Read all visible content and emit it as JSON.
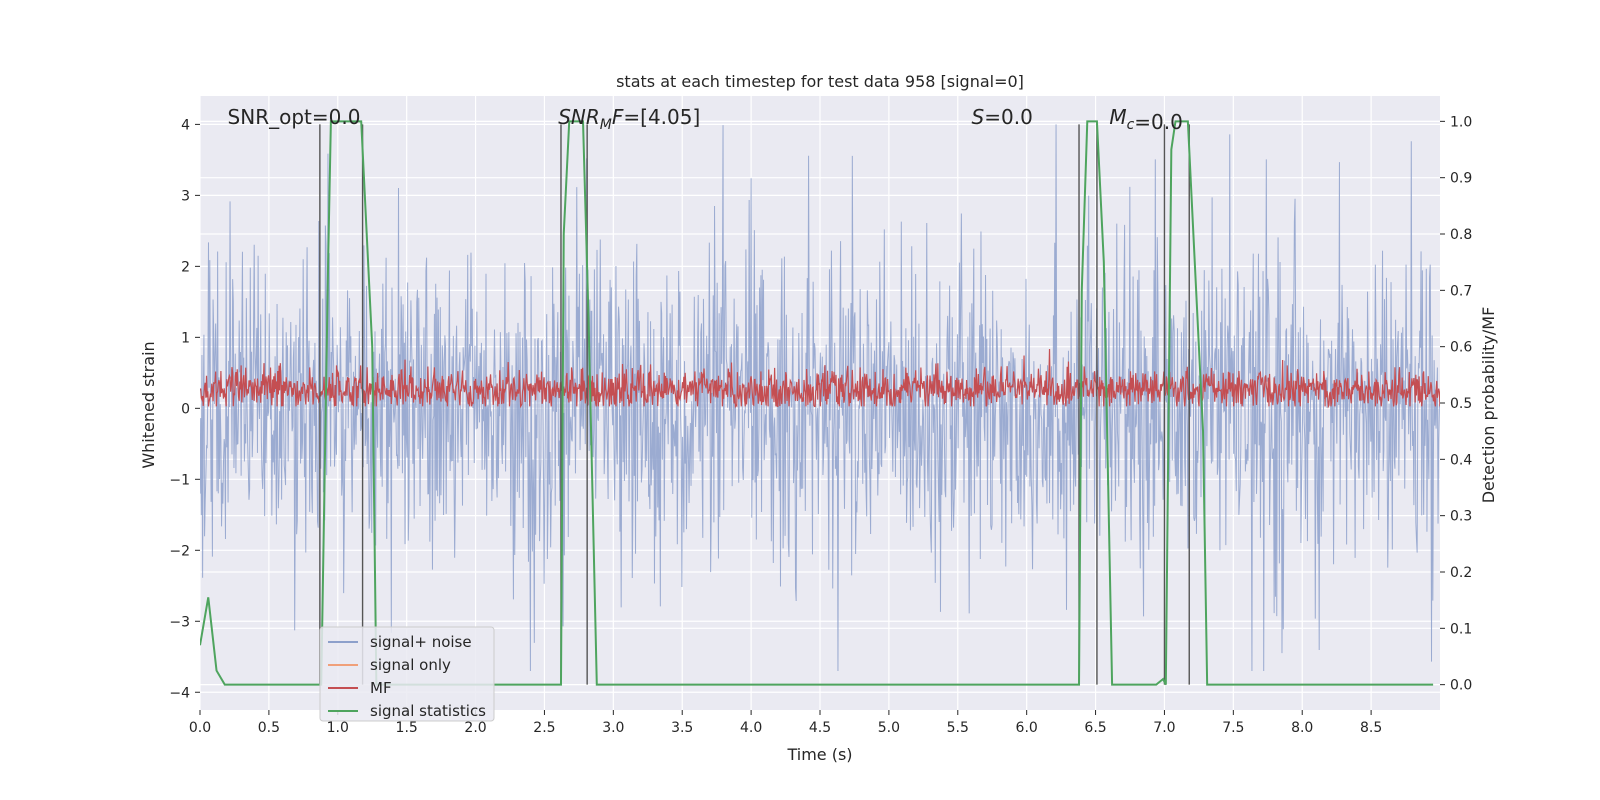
{
  "chart_data": {
    "type": "line",
    "title": "stats at each timestep for test data 958 [signal=0]",
    "xlabel": "Time (s)",
    "ylabel": "Whitened strain",
    "y2label": "Detection probability/MF",
    "xlim": [
      0.0,
      9.0
    ],
    "ylim": [
      -4.25,
      4.4
    ],
    "y2lim": [
      -0.045,
      1.045
    ],
    "x_ticks": [
      "0.0",
      "0.5",
      "1.0",
      "1.5",
      "2.0",
      "2.5",
      "3.0",
      "3.5",
      "4.0",
      "4.5",
      "5.0",
      "5.5",
      "6.0",
      "6.5",
      "7.0",
      "7.5",
      "8.0",
      "8.5"
    ],
    "y_ticks": [
      "−4",
      "−3",
      "−2",
      "−1",
      "0",
      "1",
      "2",
      "3",
      "4"
    ],
    "y2_ticks": [
      "0.0",
      "0.1",
      "0.2",
      "0.3",
      "0.4",
      "0.5",
      "0.6",
      "0.7",
      "0.8",
      "0.9",
      "1.0"
    ],
    "grid": true,
    "legend_position": "lower-left",
    "annotations": [
      {
        "label": "SNR_opt",
        "value": "0.0",
        "x": 0.2
      },
      {
        "label": "SNR",
        "sub": "M",
        "suffix": "F",
        "value": "[4.05]",
        "x": 2.6
      },
      {
        "label": "S",
        "value": "0.0",
        "x": 5.6
      },
      {
        "label": "M",
        "sub": "c",
        "value": "0.0",
        "x": 6.6
      }
    ],
    "series": [
      {
        "name": "signal+ noise",
        "color": "#8da0cb",
        "axis": "left",
        "amplitude_range": [
          -3.7,
          4.0
        ]
      },
      {
        "name": "signal only",
        "color": "#f0a07a",
        "axis": "left",
        "values": []
      },
      {
        "name": "MF",
        "color": "#c44e52",
        "axis": "right",
        "value_range": [
          0.5,
          0.6
        ]
      },
      {
        "name": "signal statistics",
        "color": "#4ea45e",
        "axis": "right",
        "x": [
          0.0,
          0.06,
          0.12,
          0.18,
          0.88,
          0.93,
          0.95,
          1.17,
          1.25,
          1.28,
          2.62,
          2.64,
          2.68,
          2.78,
          2.82,
          2.88,
          6.38,
          6.4,
          6.44,
          6.51,
          6.56,
          6.62,
          6.94,
          6.99,
          7.01,
          7.05,
          7.08,
          7.17,
          7.28,
          7.31,
          8.95
        ],
        "values": [
          0.07,
          0.155,
          0.025,
          0.0,
          0.0,
          0.75,
          1.0,
          1.0,
          0.6,
          0.0,
          0.0,
          0.8,
          1.0,
          1.0,
          0.65,
          0.0,
          0.0,
          0.7,
          1.0,
          1.0,
          0.75,
          0.0,
          0.0,
          0.01,
          0.0,
          0.95,
          1.0,
          1.0,
          0.45,
          0.0,
          0.0
        ]
      }
    ],
    "vertical_markers": [
      0.87,
      1.18,
      2.62,
      2.81,
      6.38,
      6.51,
      7.0,
      7.18
    ]
  }
}
